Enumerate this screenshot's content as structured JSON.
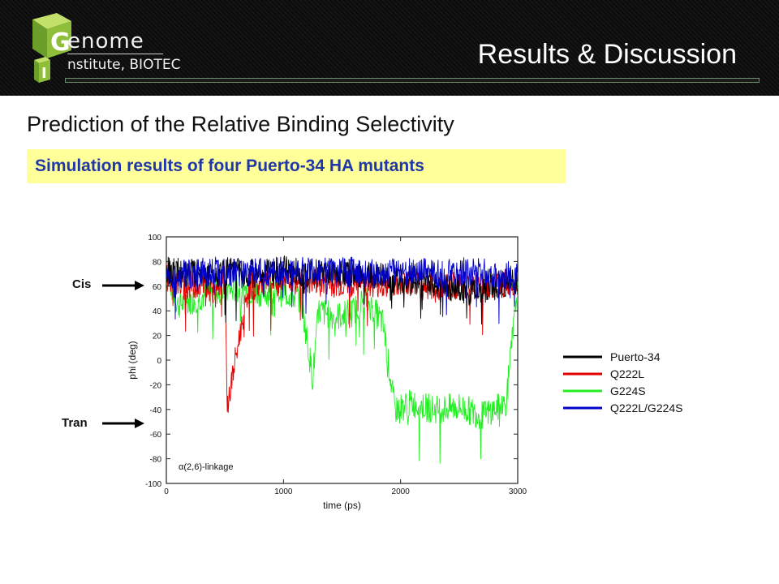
{
  "header": {
    "brand_line1": "enome",
    "brand_line2": "nstitute, BIOTEC",
    "logo_letter_top": "G",
    "logo_letter_bottom": "I",
    "title": "Results & Discussion"
  },
  "subtitle": "Prediction of the Relative Binding Selectivity",
  "banner": "Simulation results of four  Puerto-34 HA mutants",
  "annotations": {
    "cis": "Cis",
    "tran": "Tran"
  },
  "colors": {
    "header_bg": "#111111",
    "banner_bg": "#ffff99",
    "banner_text": "#1f37a8"
  },
  "chart_data": {
    "type": "line",
    "xlabel": "time (ps)",
    "ylabel": "phi (deg)",
    "annotation": "α(2,6)-linkage",
    "xlim": [
      0,
      3000
    ],
    "ylim": [
      -100,
      100
    ],
    "xticks": [
      0,
      1000,
      2000,
      3000
    ],
    "yticks": [
      100,
      80,
      60,
      40,
      20,
      0,
      -20,
      -40,
      -60,
      -80,
      -100
    ],
    "legend_position": "right",
    "series": [
      {
        "name": "Puerto-34",
        "color": "#000000",
        "x": [
          0,
          200,
          400,
          600,
          800,
          1000,
          1200,
          1400,
          1600,
          1800,
          2000,
          2200,
          2400,
          2600,
          2800,
          3000
        ],
        "values": [
          72,
          70,
          71,
          72,
          70,
          73,
          71,
          72,
          70,
          68,
          66,
          64,
          60,
          55,
          60,
          65
        ]
      },
      {
        "name": "Q222L",
        "color": "#e00000",
        "x": [
          0,
          150,
          300,
          500,
          520,
          700,
          900,
          1100,
          1300,
          1500,
          1700,
          1900,
          2100,
          2300,
          2500,
          2700,
          2900,
          3000
        ],
        "values": [
          68,
          60,
          62,
          65,
          -38,
          60,
          62,
          64,
          63,
          62,
          64,
          60,
          62,
          58,
          62,
          60,
          62,
          64
        ]
      },
      {
        "name": "G224S",
        "color": "#22ee22",
        "x": [
          0,
          100,
          250,
          400,
          600,
          800,
          1000,
          1150,
          1250,
          1300,
          1450,
          1600,
          1700,
          1850,
          1950,
          2100,
          2300,
          2500,
          2700,
          2900,
          3000
        ],
        "values": [
          70,
          45,
          50,
          55,
          58,
          55,
          55,
          50,
          -15,
          40,
          35,
          40,
          50,
          30,
          -40,
          -35,
          -40,
          -38,
          -45,
          -35,
          60
        ]
      },
      {
        "name": "Q222L/G224S",
        "color": "#0000cc",
        "x": [
          0,
          200,
          400,
          600,
          800,
          1000,
          1100,
          1200,
          1400,
          1600,
          1800,
          2000,
          2200,
          2400,
          2600,
          2800,
          3000
        ],
        "values": [
          68,
          70,
          72,
          70,
          71,
          72,
          70,
          73,
          71,
          72,
          70,
          72,
          71,
          70,
          72,
          70,
          68
        ]
      }
    ]
  }
}
